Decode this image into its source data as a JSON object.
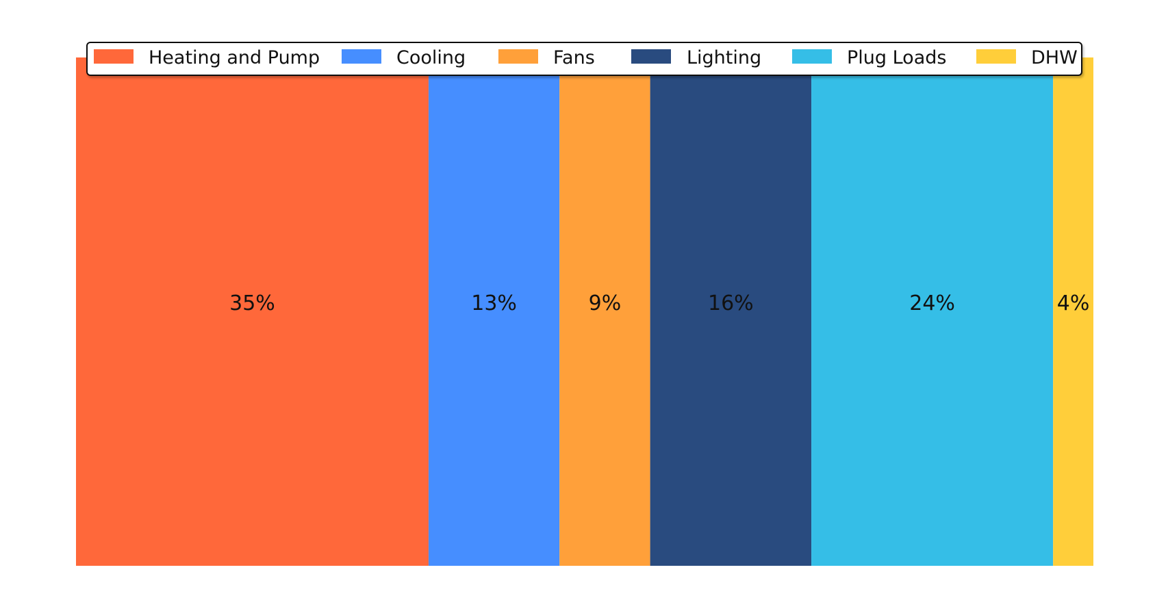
{
  "chart_data": {
    "type": "bar",
    "orientation": "horizontal-stacked",
    "title": "",
    "xlabel": "",
    "ylabel": "",
    "categories": [
      ""
    ],
    "xlim": [
      0,
      101
    ],
    "grid": false,
    "legend_position": "top",
    "series": [
      {
        "name": "Heating and Pump",
        "value": 35,
        "label": "35%",
        "color": "#FF683A"
      },
      {
        "name": "Cooling",
        "value": 13,
        "label": "13%",
        "color": "#468EFF"
      },
      {
        "name": "Fans",
        "value": 9,
        "label": "9%",
        "color": "#FFA03A"
      },
      {
        "name": "Lighting",
        "value": 16,
        "label": "16%",
        "color": "#294B7F"
      },
      {
        "name": "Plug Loads",
        "value": 24,
        "label": "24%",
        "color": "#35BEE7"
      },
      {
        "name": "DHW",
        "value": 4,
        "label": "4%",
        "color": "#FFCE3A"
      }
    ]
  }
}
